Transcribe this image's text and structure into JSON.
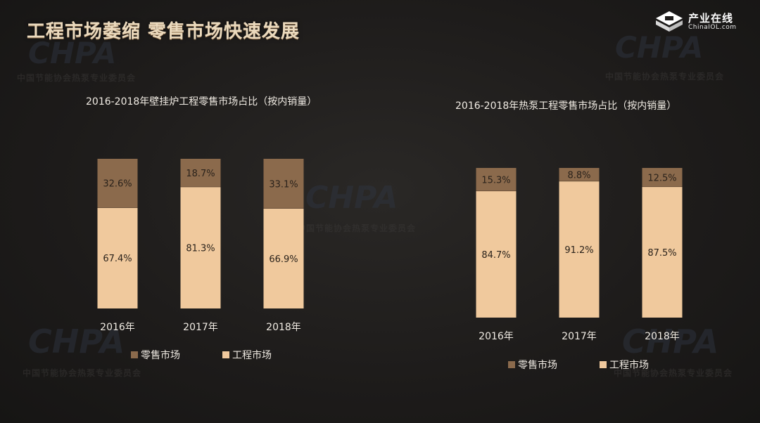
{
  "page": {
    "title": "工程市场萎缩 零售市场快速发展",
    "logo": {
      "name": "产业在线",
      "url_text": "ChinaIOL.com"
    },
    "watermark": {
      "acronym": "CHPA",
      "org_name": "中国节能协会热泵专业委员会"
    }
  },
  "colors": {
    "retail": "#8b6a4c",
    "engineering": "#f0c99d",
    "label_text": "#2a221b",
    "axis_text": "#f1ece4"
  },
  "chart_data": [
    {
      "type": "bar",
      "stacked": true,
      "percent_stacked": true,
      "title": "2016-2018年壁挂炉工程零售市场占比（按内销量）",
      "categories": [
        "2016年",
        "2017年",
        "2018年"
      ],
      "series": [
        {
          "name": "工程市场",
          "values": [
            67.4,
            81.3,
            66.9
          ],
          "labels": [
            "67.4%",
            "81.3%",
            "66.9%"
          ]
        },
        {
          "name": "零售市场",
          "values": [
            32.6,
            18.7,
            33.1
          ],
          "labels": [
            "32.6%",
            "18.7%",
            "33.1%"
          ]
        }
      ],
      "legend": {
        "position": "bottom",
        "items": [
          "零售市场",
          "工程市场"
        ]
      }
    },
    {
      "type": "bar",
      "stacked": true,
      "percent_stacked": true,
      "title": "2016-2018年热泵工程零售市场占比（按内销量）",
      "categories": [
        "2016年",
        "2017年",
        "2018年"
      ],
      "series": [
        {
          "name": "工程市场",
          "values": [
            84.7,
            91.2,
            87.5
          ],
          "labels": [
            "84.7%",
            "91.2%",
            "87.5%"
          ]
        },
        {
          "name": "零售市场",
          "values": [
            15.3,
            8.8,
            12.5
          ],
          "labels": [
            "15.3%",
            "8.8%",
            "12.5%"
          ]
        }
      ],
      "legend": {
        "position": "bottom",
        "items": [
          "零售市场",
          "工程市场"
        ]
      }
    }
  ]
}
